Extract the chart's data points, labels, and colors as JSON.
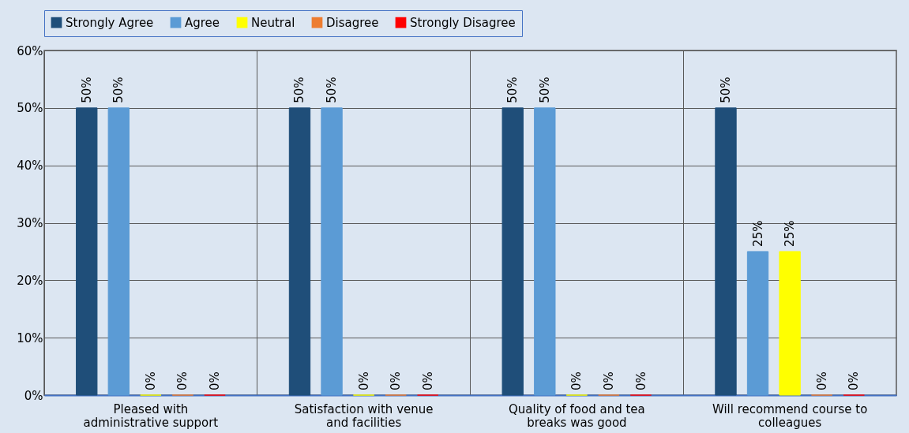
{
  "chart_data": {
    "type": "bar",
    "categories": [
      "Pleased with administrative support",
      "Satisfaction with venue and facilities",
      "Quality of food and tea breaks was good",
      "Will recommend course to colleagues"
    ],
    "series": [
      {
        "name": "Strongly Agree",
        "color": "#1f4e79",
        "values": [
          50,
          50,
          50,
          50
        ],
        "value_labels": [
          "50%",
          "50%",
          "50%",
          "50%"
        ]
      },
      {
        "name": "Agree",
        "color": "#5b9bd5",
        "values": [
          50,
          50,
          50,
          25
        ],
        "value_labels": [
          "50%",
          "50%",
          "50%",
          "25%"
        ]
      },
      {
        "name": "Neutral",
        "color": "#ffff00",
        "values": [
          0,
          0,
          0,
          25
        ],
        "value_labels": [
          "0%",
          "0%",
          "0%",
          "25%"
        ]
      },
      {
        "name": "Disagree",
        "color": "#ed7d31",
        "values": [
          0,
          0,
          0,
          0
        ],
        "value_labels": [
          "0%",
          "0%",
          "0%",
          "0%"
        ]
      },
      {
        "name": "Strongly Disagree",
        "color": "#ff0000",
        "values": [
          0,
          0,
          0,
          0
        ],
        "value_labels": [
          "0%",
          "0%",
          "0%",
          "0%"
        ]
      }
    ],
    "ylim": [
      0,
      60
    ],
    "yticks": [
      {
        "value": 0,
        "label": "0%"
      },
      {
        "value": 10,
        "label": "10%"
      },
      {
        "value": 20,
        "label": "20%"
      },
      {
        "value": 30,
        "label": "30%"
      },
      {
        "value": 40,
        "label": "40%"
      },
      {
        "value": 50,
        "label": "50%"
      },
      {
        "value": 60,
        "label": "60%"
      }
    ],
    "grid": true,
    "legend": "top"
  }
}
